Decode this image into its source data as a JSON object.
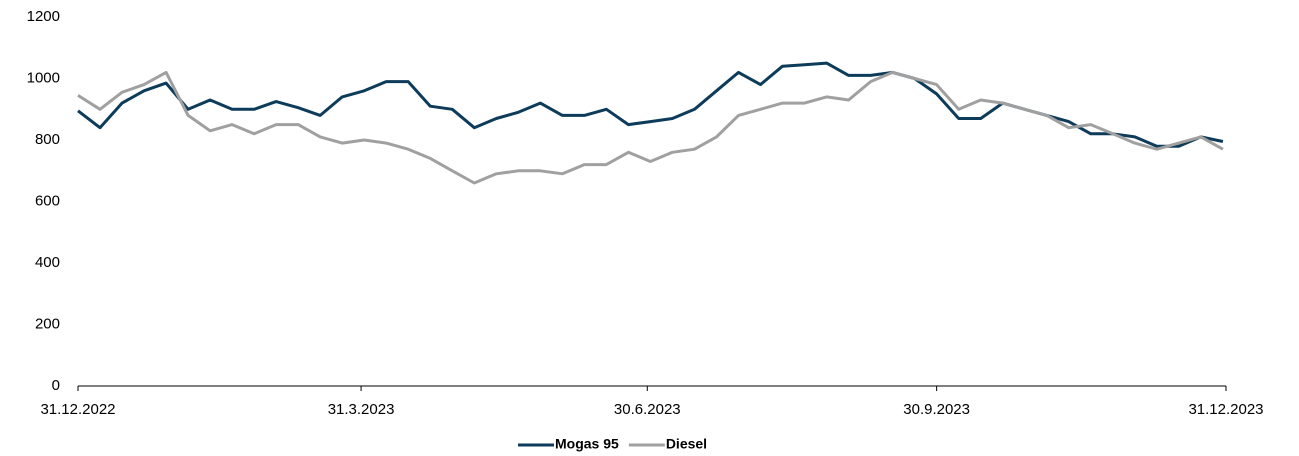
{
  "chart_data": {
    "type": "line",
    "x": [
      "2022-12-31",
      "2023-01-07",
      "2023-01-14",
      "2023-01-21",
      "2023-01-28",
      "2023-02-04",
      "2023-02-11",
      "2023-02-18",
      "2023-02-25",
      "2023-03-04",
      "2023-03-11",
      "2023-03-18",
      "2023-03-25",
      "2023-04-01",
      "2023-04-08",
      "2023-04-15",
      "2023-04-22",
      "2023-04-29",
      "2023-05-06",
      "2023-05-13",
      "2023-05-20",
      "2023-05-27",
      "2023-06-03",
      "2023-06-10",
      "2023-06-17",
      "2023-06-24",
      "2023-07-01",
      "2023-07-08",
      "2023-07-15",
      "2023-07-22",
      "2023-07-29",
      "2023-08-05",
      "2023-08-12",
      "2023-08-19",
      "2023-08-26",
      "2023-09-02",
      "2023-09-09",
      "2023-09-16",
      "2023-09-23",
      "2023-09-30",
      "2023-10-07",
      "2023-10-14",
      "2023-10-21",
      "2023-10-28",
      "2023-11-04",
      "2023-11-11",
      "2023-11-18",
      "2023-11-25",
      "2023-12-02",
      "2023-12-09",
      "2023-12-16",
      "2023-12-23",
      "2023-12-30"
    ],
    "series": [
      {
        "name": "Mogas 95",
        "color": "#0d3b5a",
        "values": [
          895,
          840,
          920,
          960,
          985,
          900,
          930,
          900,
          900,
          925,
          905,
          880,
          940,
          960,
          990,
          990,
          910,
          900,
          840,
          870,
          890,
          920,
          880,
          880,
          900,
          850,
          860,
          870,
          900,
          960,
          1020,
          980,
          1040,
          1045,
          1050,
          1010,
          1010,
          1020,
          1000,
          950,
          870,
          870,
          920,
          900,
          880,
          860,
          820,
          820,
          810,
          780,
          780,
          810,
          795
        ]
      },
      {
        "name": "Diesel",
        "color": "#a0a0a0",
        "values": [
          945,
          900,
          955,
          980,
          1020,
          880,
          830,
          850,
          820,
          850,
          850,
          810,
          790,
          800,
          790,
          770,
          740,
          700,
          660,
          690,
          700,
          700,
          690,
          720,
          720,
          760,
          730,
          760,
          770,
          810,
          880,
          900,
          920,
          920,
          940,
          930,
          990,
          1020,
          1000,
          980,
          900,
          930,
          920,
          900,
          880,
          840,
          850,
          820,
          790,
          770,
          790,
          810,
          770
        ]
      }
    ],
    "xlim": [
      "2022-12-31",
      "2023-12-31"
    ],
    "xticks": [
      {
        "value": "2022-12-31",
        "label": "31.12.2022"
      },
      {
        "value": "2023-03-31",
        "label": "31.3.2023"
      },
      {
        "value": "2023-06-30",
        "label": "30.6.2023"
      },
      {
        "value": "2023-09-30",
        "label": "30.9.2023"
      },
      {
        "value": "2023-12-31",
        "label": "31.12.2023"
      }
    ],
    "ylim": [
      0,
      1200
    ],
    "yticks": [
      0,
      200,
      400,
      600,
      800,
      1000,
      1200
    ],
    "grid": false,
    "legend": "bottom"
  }
}
